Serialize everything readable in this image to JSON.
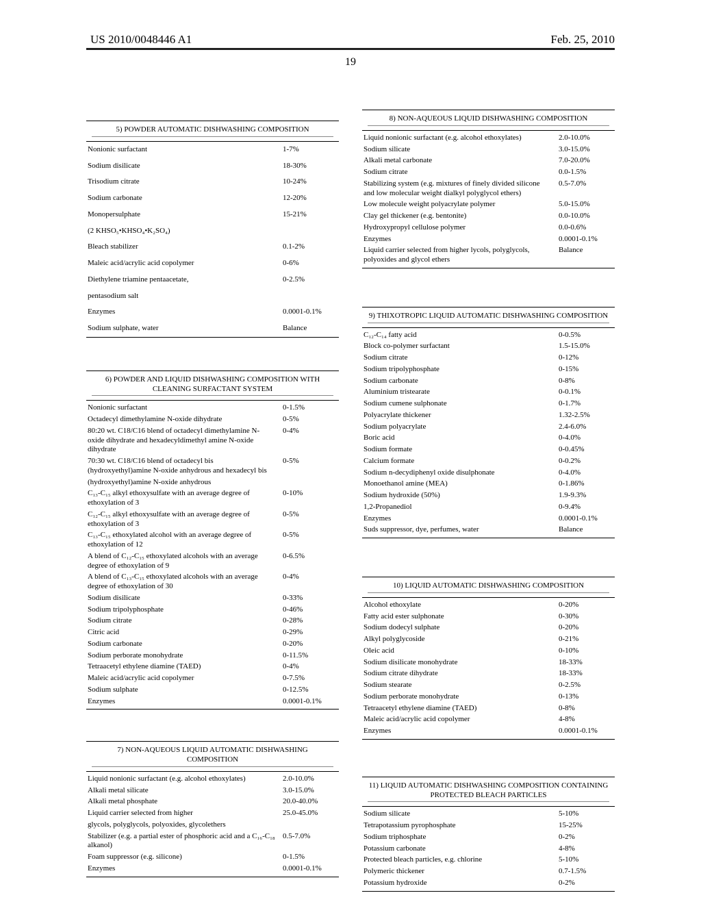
{
  "header": {
    "pubno": "US 2010/0048446 A1",
    "pubdate": "Feb. 25, 2010",
    "pageno": "19"
  },
  "tables": {
    "t5": {
      "caption": "5) POWDER AUTOMATIC DISHWASHING COMPOSITION",
      "rows": [
        [
          "Nonionic surfactant",
          "1-7%"
        ],
        [
          "Sodium disilicate",
          "18-30%"
        ],
        [
          "Trisodium citrate",
          "10-24%"
        ],
        [
          "Sodium carbonate",
          "12-20%"
        ],
        [
          "Monopersulphate",
          "15-21%"
        ],
        [
          "(2 KHSO₅•KHSO₄•K₂SO₄)",
          ""
        ],
        [
          "Bleach stabilizer",
          "0.1-2%"
        ],
        [
          "Maleic acid/acrylic acid copolymer",
          "0-6%"
        ],
        [
          "Diethylene triamine pentaacetate,",
          "0-2.5%"
        ],
        [
          "pentasodium salt",
          ""
        ],
        [
          "Enzymes",
          "0.0001-0.1%"
        ],
        [
          "Sodium sulphate, water",
          "Balance"
        ]
      ]
    },
    "t6": {
      "caption": "6) POWDER AND LIQUID DISHWASHING COMPOSITION WITH CLEANING SURFACTANT SYSTEM",
      "rows": [
        [
          "Nonionic surfactant",
          "0-1.5%"
        ],
        [
          "Octadecyl dimethylamine N-oxide dihydrate",
          "0-5%"
        ],
        [
          "80:20 wt. C18/C16 blend of octadecyl dimethylamine N-oxide dihydrate and hexadecyldimethyl amine N-oxide dihydrate",
          "0-4%"
        ],
        [
          "70:30 wt. C18/C16 blend of octadecyl bis (hydroxyethyl)amine N-oxide anhydrous and hexadecyl bis",
          "0-5%"
        ],
        [
          "(hydroxyethyl)amine N-oxide anhydrous",
          ""
        ],
        [
          "C₁₃-C₁₅ alkyl ethoxysulfate with an average degree of ethoxylation of 3",
          "0-10%"
        ],
        [
          "C₁₂-C₁₅ alkyl ethoxysulfate with an average degree of ethoxylation of 3",
          "0-5%"
        ],
        [
          "C₁₃-C₁₅ ethoxylated alcohol with an average degree of ethoxylation of 12",
          "0-5%"
        ],
        [
          "A blend of C₁₂-C₁₅ ethoxylated alcohols with an average degree of ethoxylation of 9",
          "0-6.5%"
        ],
        [
          "A blend of C₁₃-C₁₅ ethoxylated alcohols with an average degree of ethoxylation of 30",
          "0-4%"
        ],
        [
          "Sodium disilicate",
          "0-33%"
        ],
        [
          "Sodium tripolyphosphate",
          "0-46%"
        ],
        [
          "Sodium citrate",
          "0-28%"
        ],
        [
          "Citric acid",
          "0-29%"
        ],
        [
          "Sodium carbonate",
          "0-20%"
        ],
        [
          "Sodium perborate monohydrate",
          "0-11.5%"
        ],
        [
          "Tetraacetyl ethylene diamine (TAED)",
          "0-4%"
        ],
        [
          "Maleic acid/acrylic acid copolymer",
          "0-7.5%"
        ],
        [
          "Sodium sulphate",
          "0-12.5%"
        ],
        [
          "Enzymes",
          "0.0001-0.1%"
        ]
      ]
    },
    "t7": {
      "caption": "7) NON-AQUEOUS LIQUID AUTOMATIC DISHWASHING COMPOSITION",
      "rows": [
        [
          "Liquid nonionic surfactant (e.g. alcohol ethoxylates)",
          "2.0-10.0%"
        ],
        [
          "Alkali metal silicate",
          "3.0-15.0%"
        ],
        [
          "Alkali metal phosphate",
          "20.0-40.0%"
        ],
        [
          "Liquid carrier selected from higher",
          "25.0-45.0%"
        ],
        [
          "glycols, polyglycols, polyoxides, glycolethers",
          ""
        ],
        [
          "Stabilizer (e.g. a partial ester of phosphoric acid and a C₁₆-C₁₈ alkanol)",
          "0.5-7.0%"
        ],
        [
          "Foam suppressor (e.g. silicone)",
          "0-1.5%"
        ],
        [
          "Enzymes",
          "0.0001-0.1%"
        ]
      ]
    },
    "t8": {
      "caption": "8) NON-AQUEOUS LIQUID DISHWASHING COMPOSITION",
      "rows": [
        [
          "Liquid nonionic surfactant (e.g. alcohol ethoxylates)",
          "2.0-10.0%"
        ],
        [
          "Sodium silicate",
          "3.0-15.0%"
        ],
        [
          "Alkali metal carbonate",
          "7.0-20.0%"
        ],
        [
          "Sodium citrate",
          "0.0-1.5%"
        ],
        [
          "Stabilizing system (e.g. mixtures of finely divided silicone and low molecular weight dialkyl polyglycol ethers)",
          "0.5-7.0%"
        ],
        [
          "Low molecule weight polyacrylate polymer",
          "5.0-15.0%"
        ],
        [
          "Clay gel thickener (e.g. bentonite)",
          "0.0-10.0%"
        ],
        [
          "Hydroxypropyl cellulose polymer",
          "0.0-0.6%"
        ],
        [
          "Enzymes",
          "0.0001-0.1%"
        ],
        [
          "Liquid carrier selected from higher lycols, polyglycols, polyoxides and glycol ethers",
          "Balance"
        ]
      ]
    },
    "t9": {
      "caption": "9) THIXOTROPIC LIQUID AUTOMATIC DISHWASHING COMPOSITION",
      "rows": [
        [
          "C₁₂-C₁₄ fatty acid",
          "0-0.5%"
        ],
        [
          "Block co-polymer surfactant",
          "1.5-15.0%"
        ],
        [
          "Sodium citrate",
          "0-12%"
        ],
        [
          "Sodium tripolyphosphate",
          "0-15%"
        ],
        [
          "Sodium carbonate",
          "0-8%"
        ],
        [
          "Aluminium tristearate",
          "0-0.1%"
        ],
        [
          "Sodium cumene sulphonate",
          "0-1.7%"
        ],
        [
          "Polyacrylate thickener",
          "1.32-2.5%"
        ],
        [
          "Sodium polyacrylate",
          "2.4-6.0%"
        ],
        [
          "Boric acid",
          "0-4.0%"
        ],
        [
          "Sodium formate",
          "0-0.45%"
        ],
        [
          "Calcium formate",
          "0-0.2%"
        ],
        [
          "Sodium n-decydiphenyl oxide disulphonate",
          "0-4.0%"
        ],
        [
          "Monoethanol amine (MEA)",
          "0-1.86%"
        ],
        [
          "Sodium hydroxide (50%)",
          "1.9-9.3%"
        ],
        [
          "1,2-Propanediol",
          "0-9.4%"
        ],
        [
          "Enzymes",
          "0.0001-0.1%"
        ],
        [
          "Suds suppressor, dye, perfumes, water",
          "Balance"
        ]
      ]
    },
    "t10": {
      "caption": "10) LIQUID AUTOMATIC DISHWASHING COMPOSITION",
      "rows": [
        [
          "Alcohol ethoxylate",
          "0-20%"
        ],
        [
          "Fatty acid ester sulphonate",
          "0-30%"
        ],
        [
          "Sodium dodecyl sulphate",
          "0-20%"
        ],
        [
          "Alkyl polyglycoside",
          "0-21%"
        ],
        [
          "Oleic acid",
          "0-10%"
        ],
        [
          "Sodium disilicate monohydrate",
          "18-33%"
        ],
        [
          "Sodium citrate dihydrate",
          "18-33%"
        ],
        [
          "Sodium stearate",
          "0-2.5%"
        ],
        [
          "Sodium perborate monohydrate",
          "0-13%"
        ],
        [
          "Tetraacetyl ethylene diamine (TAED)",
          "0-8%"
        ],
        [
          "Maleic acid/acrylic acid copolymer",
          "4-8%"
        ],
        [
          "Enzymes",
          "0.0001-0.1%"
        ]
      ]
    },
    "t11": {
      "caption": "11) LIQUID AUTOMATIC DISHWASHING COMPOSITION CONTAINING PROTECTED BLEACH PARTICLES",
      "rows": [
        [
          "Sodium silicate",
          "5-10%"
        ],
        [
          "Tetrapotassium pyrophosphate",
          "15-25%"
        ],
        [
          "Sodium triphosphate",
          "0-2%"
        ],
        [
          "Potassium carbonate",
          "4-8%"
        ],
        [
          "Protected bleach particles, e.g. chlorine",
          "5-10%"
        ],
        [
          "Polymeric thickener",
          "0.7-1.5%"
        ],
        [
          "Potassium hydroxide",
          "0-2%"
        ]
      ]
    }
  }
}
